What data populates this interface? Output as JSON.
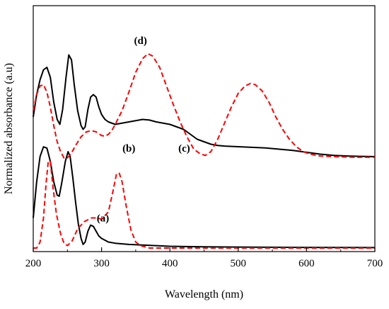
{
  "chart_data": {
    "type": "line",
    "title": "",
    "xlabel": "Wavelength (nm)",
    "ylabel": "Normalized absorbance (a.u)",
    "xlim": [
      200,
      700
    ],
    "x_ticks": [
      200,
      300,
      400,
      500,
      600,
      700
    ],
    "y_ticks": [],
    "grid": false,
    "legend": "none",
    "colors": {
      "solid": "#000000",
      "dashed": "#ff0000"
    },
    "series": [
      {
        "name": "(a)",
        "style": "solid",
        "points": [
          [
            200,
            0.25
          ],
          [
            205,
            0.55
          ],
          [
            210,
            0.76
          ],
          [
            215,
            0.84
          ],
          [
            220,
            0.83
          ],
          [
            225,
            0.72
          ],
          [
            230,
            0.55
          ],
          [
            235,
            0.44
          ],
          [
            238,
            0.43
          ],
          [
            242,
            0.55
          ],
          [
            247,
            0.72
          ],
          [
            251,
            0.8
          ],
          [
            254,
            0.76
          ],
          [
            258,
            0.58
          ],
          [
            262,
            0.38
          ],
          [
            266,
            0.2
          ],
          [
            270,
            0.08
          ],
          [
            273,
            0.03
          ],
          [
            276,
            0.05
          ],
          [
            280,
            0.14
          ],
          [
            284,
            0.19
          ],
          [
            288,
            0.18
          ],
          [
            292,
            0.14
          ],
          [
            296,
            0.1
          ],
          [
            300,
            0.08
          ],
          [
            310,
            0.05
          ],
          [
            320,
            0.04
          ],
          [
            340,
            0.03
          ],
          [
            360,
            0.025
          ],
          [
            380,
            0.02
          ],
          [
            400,
            0.015
          ],
          [
            450,
            0.01
          ],
          [
            500,
            0.008
          ],
          [
            600,
            0.005
          ],
          [
            700,
            0.004
          ]
        ]
      },
      {
        "name": "(b)",
        "style": "dashed",
        "points": [
          [
            200,
            0.0
          ],
          [
            205,
            0.0
          ],
          [
            210,
            0.05
          ],
          [
            215,
            0.25
          ],
          [
            219,
            0.55
          ],
          [
            222,
            0.72
          ],
          [
            225,
            0.72
          ],
          [
            229,
            0.5
          ],
          [
            234,
            0.28
          ],
          [
            240,
            0.12
          ],
          [
            245,
            0.04
          ],
          [
            250,
            0.02
          ],
          [
            257,
            0.06
          ],
          [
            265,
            0.16
          ],
          [
            275,
            0.22
          ],
          [
            285,
            0.25
          ],
          [
            292,
            0.25
          ],
          [
            300,
            0.24
          ],
          [
            310,
            0.3
          ],
          [
            317,
            0.48
          ],
          [
            322,
            0.62
          ],
          [
            326,
            0.62
          ],
          [
            330,
            0.55
          ],
          [
            336,
            0.35
          ],
          [
            343,
            0.15
          ],
          [
            350,
            0.05
          ],
          [
            357,
            0.02
          ],
          [
            370,
            0.0
          ],
          [
            400,
            0.0
          ],
          [
            500,
            0.0
          ],
          [
            700,
            0.0
          ]
        ]
      },
      {
        "name": "(c)",
        "style": "solid",
        "points": [
          [
            200,
            0.4
          ],
          [
            205,
            0.58
          ],
          [
            210,
            0.7
          ],
          [
            215,
            0.78
          ],
          [
            220,
            0.8
          ],
          [
            225,
            0.72
          ],
          [
            230,
            0.52
          ],
          [
            235,
            0.38
          ],
          [
            239,
            0.34
          ],
          [
            243,
            0.46
          ],
          [
            248,
            0.72
          ],
          [
            252,
            0.9
          ],
          [
            256,
            0.86
          ],
          [
            260,
            0.66
          ],
          [
            265,
            0.45
          ],
          [
            270,
            0.33
          ],
          [
            273,
            0.3
          ],
          [
            276,
            0.32
          ],
          [
            280,
            0.46
          ],
          [
            284,
            0.56
          ],
          [
            288,
            0.58
          ],
          [
            292,
            0.56
          ],
          [
            296,
            0.48
          ],
          [
            300,
            0.42
          ],
          [
            305,
            0.38
          ],
          [
            310,
            0.36
          ],
          [
            320,
            0.34
          ],
          [
            330,
            0.35
          ],
          [
            340,
            0.36
          ],
          [
            350,
            0.37
          ],
          [
            360,
            0.38
          ],
          [
            370,
            0.375
          ],
          [
            380,
            0.36
          ],
          [
            390,
            0.35
          ],
          [
            400,
            0.34
          ],
          [
            410,
            0.32
          ],
          [
            420,
            0.3
          ],
          [
            430,
            0.26
          ],
          [
            440,
            0.22
          ],
          [
            450,
            0.2
          ],
          [
            460,
            0.18
          ],
          [
            470,
            0.17
          ],
          [
            480,
            0.165
          ],
          [
            500,
            0.16
          ],
          [
            520,
            0.155
          ],
          [
            540,
            0.15
          ],
          [
            560,
            0.14
          ],
          [
            580,
            0.13
          ],
          [
            600,
            0.115
          ],
          [
            620,
            0.1
          ],
          [
            640,
            0.09
          ],
          [
            660,
            0.085
          ],
          [
            680,
            0.082
          ],
          [
            700,
            0.08
          ]
        ]
      },
      {
        "name": "(d)",
        "style": "dashed",
        "points": [
          [
            200,
            0.45
          ],
          [
            205,
            0.58
          ],
          [
            210,
            0.65
          ],
          [
            215,
            0.66
          ],
          [
            220,
            0.6
          ],
          [
            225,
            0.48
          ],
          [
            230,
            0.33
          ],
          [
            235,
            0.2
          ],
          [
            240,
            0.12
          ],
          [
            245,
            0.07
          ],
          [
            250,
            0.07
          ],
          [
            255,
            0.1
          ],
          [
            262,
            0.17
          ],
          [
            270,
            0.24
          ],
          [
            278,
            0.28
          ],
          [
            285,
            0.29
          ],
          [
            292,
            0.28
          ],
          [
            300,
            0.25
          ],
          [
            305,
            0.245
          ],
          [
            310,
            0.26
          ],
          [
            315,
            0.29
          ],
          [
            320,
            0.34
          ],
          [
            330,
            0.45
          ],
          [
            340,
            0.6
          ],
          [
            350,
            0.76
          ],
          [
            360,
            0.87
          ],
          [
            368,
            0.91
          ],
          [
            375,
            0.89
          ],
          [
            385,
            0.8
          ],
          [
            395,
            0.65
          ],
          [
            405,
            0.5
          ],
          [
            415,
            0.36
          ],
          [
            425,
            0.24
          ],
          [
            435,
            0.14
          ],
          [
            445,
            0.1
          ],
          [
            452,
            0.09
          ],
          [
            460,
            0.12
          ],
          [
            470,
            0.22
          ],
          [
            480,
            0.35
          ],
          [
            490,
            0.48
          ],
          [
            500,
            0.59
          ],
          [
            510,
            0.65
          ],
          [
            518,
            0.67
          ],
          [
            525,
            0.66
          ],
          [
            535,
            0.61
          ],
          [
            545,
            0.52
          ],
          [
            555,
            0.4
          ],
          [
            565,
            0.3
          ],
          [
            575,
            0.22
          ],
          [
            585,
            0.16
          ],
          [
            595,
            0.12
          ],
          [
            605,
            0.1
          ],
          [
            620,
            0.085
          ],
          [
            640,
            0.08
          ],
          [
            670,
            0.075
          ],
          [
            700,
            0.075
          ]
        ]
      }
    ],
    "annotations": [
      {
        "series": "(a)",
        "text": "(a)",
        "x": 302,
        "y": 0.22
      },
      {
        "series": "(b)",
        "text": "(b)",
        "x": 340,
        "y": 0.8
      },
      {
        "series": "(c)",
        "text": "(c)",
        "x": 421,
        "y": 0.12
      },
      {
        "series": "(d)",
        "text": "(d)",
        "x": 357,
        "y": 0.99
      }
    ]
  }
}
